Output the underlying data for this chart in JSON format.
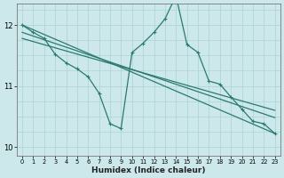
{
  "title": "",
  "xlabel": "Humidex (Indice chaleur)",
  "ylabel": "",
  "background_color": "#cce8ea",
  "grid_color": "#b0d4d8",
  "line_color": "#2a7a72",
  "xlim": [
    -0.5,
    23.5
  ],
  "ylim": [
    9.85,
    12.35
  ],
  "yticks": [
    10,
    11,
    12
  ],
  "xticks": [
    0,
    1,
    2,
    3,
    4,
    5,
    6,
    7,
    8,
    9,
    10,
    11,
    12,
    13,
    14,
    15,
    16,
    17,
    18,
    19,
    20,
    21,
    22,
    23
  ],
  "main_series": {
    "x": [
      0,
      1,
      2,
      3,
      4,
      5,
      6,
      7,
      8,
      9,
      10,
      11,
      12,
      13,
      14,
      15,
      16,
      17,
      18,
      19,
      20,
      21,
      22,
      23
    ],
    "y": [
      12.0,
      11.88,
      11.78,
      11.52,
      11.38,
      11.28,
      11.15,
      10.88,
      10.38,
      10.3,
      11.55,
      11.7,
      11.88,
      12.1,
      12.48,
      11.68,
      11.55,
      11.08,
      11.03,
      10.82,
      10.62,
      10.42,
      10.38,
      10.22
    ]
  },
  "regression_lines": [
    {
      "x": [
        0,
        23
      ],
      "y": [
        12.0,
        10.22
      ]
    },
    {
      "x": [
        0,
        23
      ],
      "y": [
        11.88,
        10.48
      ]
    },
    {
      "x": [
        0,
        23
      ],
      "y": [
        11.78,
        10.6
      ]
    }
  ]
}
